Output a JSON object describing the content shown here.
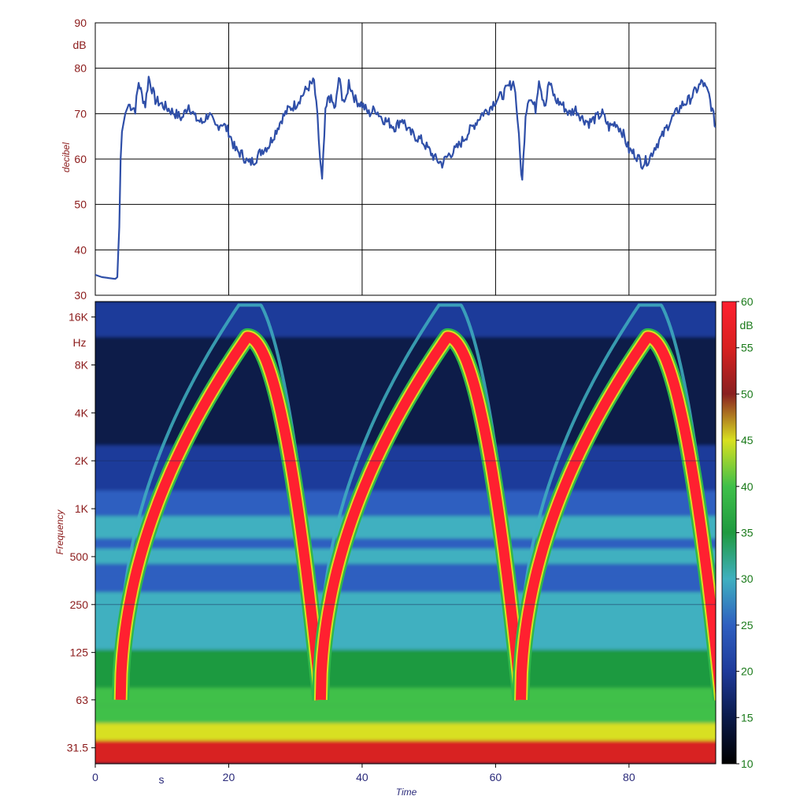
{
  "chart_data": [
    {
      "type": "line",
      "ylabel": "decibel",
      "yunit": "dB",
      "yticks": [
        30,
        40,
        50,
        60,
        70,
        80,
        90
      ],
      "ylim": [
        30,
        90
      ],
      "xlim": [
        0,
        93
      ],
      "xgrid": [
        0,
        20,
        40,
        60,
        80
      ],
      "grid": true,
      "line_color": "#2f4fa8",
      "series": [
        {
          "x": [
            0,
            1,
            2,
            3,
            3.3,
            3.6,
            3.8,
            4.0,
            4.5,
            5,
            6,
            6.5,
            7,
            7.5,
            8,
            9,
            10,
            11,
            12,
            13,
            14,
            15,
            16,
            17,
            18,
            19,
            20,
            21,
            22,
            23,
            24,
            25,
            26,
            27,
            28,
            29,
            30,
            31,
            32,
            32.8,
            33.3,
            33.7,
            34.0,
            34.5,
            35,
            36,
            36.5,
            37,
            37.5,
            38,
            39,
            40,
            41,
            42,
            43,
            44,
            45,
            46,
            47,
            48,
            49,
            50,
            51,
            52,
            53,
            54,
            55,
            56,
            57,
            58,
            59,
            60,
            61,
            62,
            62.8,
            63.3,
            63.7,
            64.0,
            64.5,
            65,
            66,
            66.5,
            67,
            67.5,
            68,
            69,
            70,
            71,
            72,
            73,
            74,
            75,
            76,
            77,
            78,
            79,
            80,
            81,
            82,
            83,
            84,
            85,
            86,
            87,
            88,
            89,
            90,
            91,
            92,
            93
          ],
          "y": [
            34.5,
            34,
            33.8,
            33.6,
            34,
            45,
            60,
            66,
            70,
            72,
            71,
            77,
            74,
            72,
            78,
            73,
            72,
            71,
            70,
            69,
            72,
            69,
            68,
            70,
            67,
            68,
            66,
            62,
            61,
            59,
            60,
            62,
            63,
            66,
            69,
            71,
            72,
            74,
            76,
            77,
            69,
            60,
            55,
            70,
            74,
            71,
            78,
            74,
            72,
            77,
            73,
            72,
            70,
            71,
            69,
            68,
            67,
            69,
            66,
            65,
            64,
            62,
            60,
            59,
            61,
            62,
            64,
            66,
            68,
            70,
            71,
            73,
            74,
            76,
            77,
            69,
            60,
            55,
            70,
            74,
            71,
            78,
            74,
            72,
            77,
            73,
            72,
            70,
            71,
            69,
            68,
            69,
            70,
            67,
            68,
            66,
            62,
            61,
            59,
            60,
            63,
            65,
            68,
            70,
            72,
            73,
            75,
            77,
            74,
            67
          ]
        }
      ]
    },
    {
      "type": "heatmap",
      "xlabel": "Time",
      "xunit": "s",
      "xticks": [
        0,
        20,
        40,
        60,
        80
      ],
      "xlim": [
        0,
        93
      ],
      "ylabel": "Frequency",
      "yunit": "Hz",
      "yticks": [
        "31.5",
        "63",
        "125",
        "250",
        "500",
        "1K",
        "2K",
        "4K",
        "8K",
        "16K"
      ],
      "ytick_values": [
        31.5,
        63,
        125,
        250,
        500,
        1000,
        2000,
        4000,
        8000,
        16000
      ],
      "ylim": [
        25,
        20000
      ],
      "yscale": "log",
      "colorbar": {
        "unit": "dB",
        "ticks": [
          10,
          15,
          20,
          25,
          30,
          35,
          40,
          45,
          50,
          55,
          60
        ],
        "range": [
          10,
          60
        ],
        "colormap": [
          "#000000",
          "#0b1a4a",
          "#1e3a9a",
          "#2f5fc0",
          "#3fb0c0",
          "#1f9a40",
          "#3fc04a",
          "#d8e020",
          "#8a2020",
          "#d82020",
          "#ff2030"
        ]
      },
      "background_bands": [
        {
          "f_low": 25,
          "f_high": 35,
          "level": 53
        },
        {
          "f_low": 35,
          "f_high": 45,
          "level": 46
        },
        {
          "f_low": 45,
          "f_high": 58,
          "level": 42
        },
        {
          "f_low": 58,
          "f_high": 75,
          "level": 39
        },
        {
          "f_low": 75,
          "f_high": 130,
          "level": 37
        },
        {
          "f_low": 130,
          "f_high": 300,
          "level": 30
        },
        {
          "f_low": 300,
          "f_high": 380,
          "level": 27
        },
        {
          "f_low": 380,
          "f_high": 450,
          "level": 23
        },
        {
          "f_low": 450,
          "f_high": 560,
          "level": 28
        },
        {
          "f_low": 560,
          "f_high": 650,
          "level": 24
        },
        {
          "f_low": 650,
          "f_high": 900,
          "level": 29
        },
        {
          "f_low": 900,
          "f_high": 1300,
          "level": 27
        },
        {
          "f_low": 1300,
          "f_high": 2500,
          "level": 21
        },
        {
          "f_low": 2500,
          "f_high": 4500,
          "level": 17
        },
        {
          "f_low": 4500,
          "f_high": 12000,
          "level": 14
        },
        {
          "f_low": 12000,
          "f_high": 20000,
          "level": 19
        }
      ],
      "sweep": {
        "level": 58,
        "start_times": [
          3.8,
          33.8,
          63.8
        ],
        "period": 30,
        "peak_offset": 19,
        "f_start": 63,
        "f_peak": 12000
      }
    }
  ]
}
